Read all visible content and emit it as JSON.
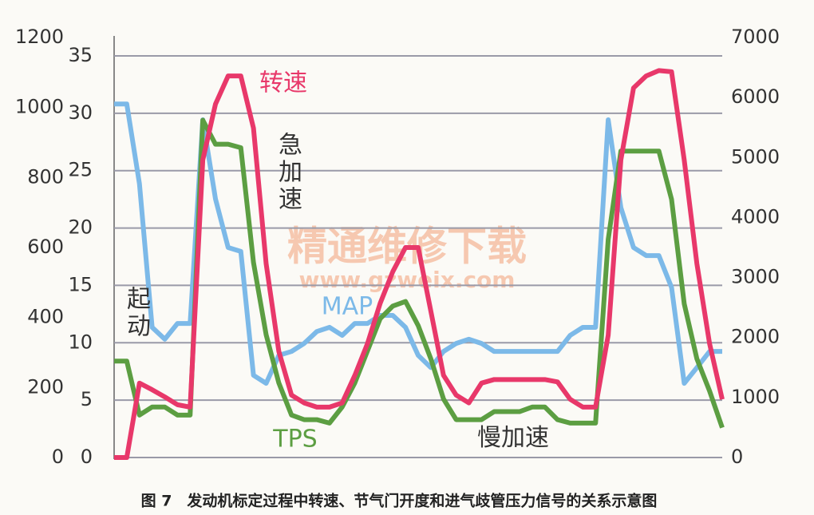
{
  "chart_data": {
    "type": "line",
    "caption": "图 7　发动机标定过程中转速、节气门开度和进气歧管压力信号的关系示意图",
    "watermark": "精通维修下载",
    "watermark_url": "www.gzweix.com",
    "annotations": [
      "急加速",
      "起动",
      "慢加速"
    ],
    "categories": [
      null,
      null,
      null,
      null,
      null,
      null,
      null,
      null,
      null,
      null,
      null,
      null,
      null,
      null,
      null,
      null,
      null,
      null,
      null,
      null,
      null,
      null,
      null,
      null,
      null,
      null,
      null,
      null,
      null,
      null,
      null,
      null,
      null,
      null,
      null,
      null,
      null,
      null,
      null,
      null,
      null,
      null,
      null,
      null,
      null,
      null,
      null,
      null,
      null
    ],
    "ylim": [
      0,
      35
    ],
    "yticks": [
      0,
      5,
      10,
      15,
      20,
      25,
      30,
      35
    ],
    "y2lim": [
      0,
      7000
    ],
    "y2ticks": [
      0,
      1000,
      2000,
      3000,
      4000,
      5000,
      6000,
      7000
    ],
    "y3lim": [
      0,
      1200
    ],
    "y3ticks": [
      0,
      200,
      400,
      600,
      800,
      1000,
      1200
    ],
    "grid": true,
    "series": [
      {
        "name": "MAP",
        "color": "#7cb9e8",
        "axis": "y3",
        "values": [
          1010,
          1010,
          782,
          372,
          338,
          383,
          383,
          965,
          739,
          600,
          589,
          235,
          212,
          292,
          303,
          326,
          360,
          372,
          349,
          383,
          383,
          406,
          406,
          372,
          292,
          257,
          303,
          326,
          338,
          326,
          303,
          303,
          303,
          303,
          303,
          303,
          349,
          372,
          372,
          965,
          714,
          600,
          577,
          577,
          486,
          212,
          257,
          303,
          303
        ]
      },
      {
        "name": "TPS",
        "color": "#5c9e42",
        "axis": "y",
        "values": [
          8.4,
          8.4,
          3.7,
          4.4,
          4.4,
          3.7,
          3.7,
          29.4,
          27.3,
          27.3,
          27.0,
          17.0,
          10.7,
          6.5,
          3.7,
          3.3,
          3.3,
          3.0,
          4.4,
          6.5,
          9.3,
          12.1,
          13.2,
          13.6,
          11.5,
          8.6,
          5.1,
          3.3,
          3.3,
          3.3,
          4.0,
          4.0,
          4.0,
          4.4,
          4.4,
          3.3,
          3.0,
          3.0,
          3.0,
          19.0,
          26.7,
          26.7,
          26.7,
          26.7,
          22.5,
          13.4,
          8.6,
          5.8,
          2.6
        ]
      },
      {
        "name": "转速",
        "color": "#e8386a",
        "axis": "y2",
        "values": [
          0,
          0,
          1240,
          1130,
          1010,
          880,
          840,
          4960,
          5890,
          6360,
          6360,
          5490,
          3230,
          1770,
          1040,
          910,
          840,
          840,
          910,
          1370,
          1900,
          2570,
          3100,
          3500,
          3500,
          2440,
          1370,
          1040,
          910,
          1240,
          1300,
          1300,
          1300,
          1300,
          1300,
          1260,
          970,
          840,
          840,
          2040,
          4960,
          6160,
          6360,
          6450,
          6430,
          4960,
          3230,
          1900,
          970
        ]
      }
    ]
  }
}
